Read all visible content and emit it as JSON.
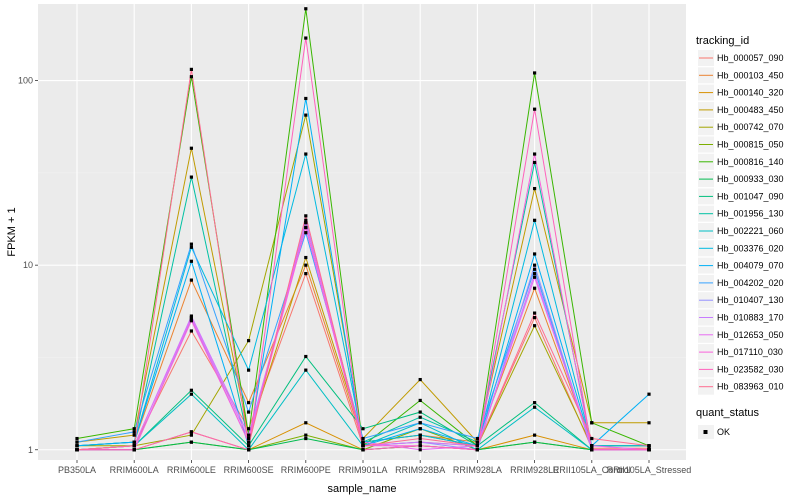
{
  "chart_data": {
    "type": "line",
    "xlabel": "sample_name",
    "ylabel": "FPKM + 1",
    "y_scale": "log10",
    "ylim": [
      0.88,
      260
    ],
    "yticks": [
      1,
      10,
      100
    ],
    "ytick_labels": [
      "1",
      "10",
      "100"
    ],
    "grid": true,
    "legend_position": "right",
    "categories": [
      "PB350LA",
      "RRIM600LA",
      "RRIM600LE",
      "RRIM600SE",
      "RRIM600PE",
      "RRIM901LA",
      "RRIM928BA",
      "RRIM928LA",
      "RRIM928LE",
      "RRII105LA_Control",
      "RRII105LA_Stressed"
    ],
    "series": [
      {
        "name": "Hb_000057_090",
        "color": "#F8766D",
        "values": [
          1.0,
          1.05,
          4.4,
          1.3,
          9.0,
          1.05,
          1.1,
          1.05,
          5.2,
          1.02,
          1.02
        ]
      },
      {
        "name": "Hb_000103_450",
        "color": "#EA8331",
        "values": [
          1.05,
          1.1,
          8.3,
          1.8,
          10.0,
          1.1,
          1.2,
          1.1,
          7.5,
          1.05,
          1.05
        ]
      },
      {
        "name": "Hb_000140_320",
        "color": "#D89000",
        "values": [
          1.0,
          1.0,
          1.25,
          1.0,
          1.4,
          1.0,
          1.05,
          1.0,
          1.2,
          1.0,
          1.0
        ]
      },
      {
        "name": "Hb_000483_450",
        "color": "#C09B00",
        "values": [
          1.1,
          1.2,
          43.0,
          1.2,
          11.0,
          1.15,
          2.4,
          1.1,
          26.0,
          1.4,
          1.4
        ]
      },
      {
        "name": "Hb_000742_070",
        "color": "#A3A500",
        "values": [
          1.05,
          1.05,
          1.2,
          3.9,
          65.0,
          1.1,
          1.2,
          1.05,
          4.7,
          1.05,
          1.05
        ]
      },
      {
        "name": "Hb_000815_050",
        "color": "#7CAE00",
        "values": [
          1.0,
          1.0,
          1.1,
          1.0,
          1.2,
          1.0,
          1.3,
          1.0,
          1.1,
          1.0,
          1.0
        ]
      },
      {
        "name": "Hb_000816_140",
        "color": "#39B600",
        "values": [
          1.15,
          1.3,
          105.0,
          1.2,
          245.0,
          1.05,
          1.85,
          1.05,
          110.0,
          1.4,
          1.05
        ]
      },
      {
        "name": "Hb_000933_030",
        "color": "#00BB4E",
        "values": [
          1.0,
          1.0,
          1.1,
          1.0,
          1.15,
          1.0,
          1.05,
          1.0,
          1.1,
          1.0,
          1.0
        ]
      },
      {
        "name": "Hb_001047_090",
        "color": "#00BF7D",
        "values": [
          1.0,
          1.05,
          2.1,
          1.05,
          3.2,
          1.3,
          1.6,
          1.05,
          1.8,
          1.0,
          1.0
        ]
      },
      {
        "name": "Hb_001956_130",
        "color": "#00C1A3",
        "values": [
          1.05,
          1.1,
          30.0,
          1.1,
          17.0,
          1.1,
          1.5,
          1.1,
          36.0,
          1.05,
          1.05
        ]
      },
      {
        "name": "Hb_002221_060",
        "color": "#00BFC4",
        "values": [
          1.0,
          1.05,
          2.0,
          1.0,
          2.7,
          1.05,
          1.4,
          1.0,
          1.7,
          1.0,
          1.0
        ]
      },
      {
        "name": "Hb_003376_020",
        "color": "#00BAE0",
        "values": [
          1.05,
          1.1,
          12.5,
          2.7,
          40.0,
          1.1,
          1.2,
          1.05,
          17.5,
          1.05,
          1.05
        ]
      },
      {
        "name": "Hb_004079_070",
        "color": "#00B0F6",
        "values": [
          1.05,
          1.1,
          10.5,
          1.05,
          80.0,
          1.05,
          1.3,
          1.05,
          11.5,
          1.05,
          2.0
        ]
      },
      {
        "name": "Hb_004202_020",
        "color": "#35A2FF",
        "values": [
          1.1,
          1.25,
          13.0,
          1.6,
          15.0,
          1.15,
          1.4,
          1.15,
          9.5,
          1.0,
          1.0
        ]
      },
      {
        "name": "Hb_010407_130",
        "color": "#9590FF",
        "values": [
          1.0,
          1.0,
          5.1,
          1.1,
          17.5,
          1.05,
          1.1,
          1.0,
          10.0,
          1.0,
          1.0
        ]
      },
      {
        "name": "Hb_010883_170",
        "color": "#C77CFF",
        "values": [
          1.0,
          1.05,
          5.3,
          1.2,
          16.0,
          1.05,
          1.1,
          1.05,
          9.0,
          1.0,
          1.0
        ]
      },
      {
        "name": "Hb_012653_050",
        "color": "#E76BF3",
        "values": [
          1.0,
          1.05,
          5.2,
          1.15,
          17.0,
          1.1,
          1.0,
          1.05,
          8.6,
          1.05,
          1.0
        ]
      },
      {
        "name": "Hb_017110_030",
        "color": "#FA62DB",
        "values": [
          1.0,
          1.0,
          5.0,
          1.1,
          16.0,
          1.05,
          1.05,
          1.0,
          40.0,
          1.0,
          1.0
        ]
      },
      {
        "name": "Hb_023582_030",
        "color": "#FF62BC",
        "values": [
          1.0,
          1.0,
          1.25,
          1.0,
          170.0,
          1.0,
          1.05,
          1.0,
          70.0,
          1.0,
          1.0
        ]
      },
      {
        "name": "Hb_083963_010",
        "color": "#FF6C91",
        "values": [
          1.0,
          1.05,
          115.0,
          1.05,
          18.5,
          1.05,
          1.15,
          1.05,
          5.5,
          1.15,
          1.05
        ]
      }
    ],
    "legend_title": "tracking_id",
    "legend2": {
      "title": "quant_status",
      "label": "OK"
    }
  }
}
